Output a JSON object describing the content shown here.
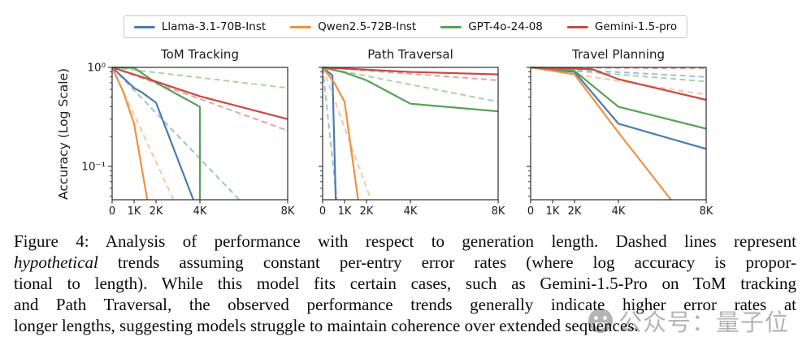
{
  "figure": {
    "ylabel": "Accuracy (Log Scale)",
    "legend": [
      {
        "label": "Llama-3.1-70B-Inst",
        "color": "#4a7bb3"
      },
      {
        "label": "Qwen2.5-72B-Inst",
        "color": "#f0913e"
      },
      {
        "label": "GPT-4o-24-08",
        "color": "#57a257"
      },
      {
        "label": "Gemini-1.5-pro",
        "color": "#cb4942"
      }
    ]
  },
  "chart_data": [
    {
      "type": "line",
      "title": "ToM Tracking",
      "xscale": "linear",
      "yscale": "log",
      "xlim": [
        0,
        8
      ],
      "ylim": [
        0.046,
        1.0
      ],
      "grid": false,
      "x_ticks": [
        {
          "v": 0,
          "label": "0"
        },
        {
          "v": 1,
          "label": "1K"
        },
        {
          "v": 2,
          "label": "2K"
        },
        {
          "v": 4,
          "label": "4K"
        },
        {
          "v": 8,
          "label": "8K"
        }
      ],
      "y_ticks": [
        {
          "v": 1,
          "label": "10⁰"
        },
        {
          "v": 0.1,
          "label": "10⁻¹"
        }
      ],
      "series": [
        {
          "name": "Llama-3.1-70B-Inst",
          "kind": "hypothetical",
          "style": "dashed",
          "color": "#4a7bb3",
          "points": [
            [
              0,
              1.0
            ],
            [
              5.8,
              0.046
            ]
          ]
        },
        {
          "name": "Qwen2.5-72B-Inst",
          "kind": "hypothetical",
          "style": "dashed",
          "color": "#f0913e",
          "points": [
            [
              0,
              1.0
            ],
            [
              2.8,
              0.046
            ]
          ]
        },
        {
          "name": "GPT-4o-24-08",
          "kind": "hypothetical",
          "style": "dashed",
          "color": "#57a257",
          "points": [
            [
              0,
              1.0
            ],
            [
              8,
              0.62
            ]
          ]
        },
        {
          "name": "Gemini-1.5-pro",
          "kind": "hypothetical",
          "style": "dashed",
          "color": "#cb4942",
          "points": [
            [
              0,
              1.0
            ],
            [
              8,
              0.23
            ]
          ]
        },
        {
          "name": "Llama-3.1-70B-Inst",
          "kind": "observed",
          "style": "solid",
          "color": "#4a7bb3",
          "points": [
            [
              0,
              1.0
            ],
            [
              1,
              0.62
            ],
            [
              1.35,
              0.56
            ],
            [
              2,
              0.44
            ],
            [
              3.7,
              0.046
            ]
          ]
        },
        {
          "name": "Qwen2.5-72B-Inst",
          "kind": "observed",
          "style": "solid",
          "color": "#f0913e",
          "points": [
            [
              0,
              1.0
            ],
            [
              0.5,
              0.57
            ],
            [
              1,
              0.27
            ],
            [
              1.6,
              0.046
            ]
          ]
        },
        {
          "name": "GPT-4o-24-08",
          "kind": "observed",
          "style": "solid",
          "color": "#57a257",
          "points": [
            [
              0,
              1.0
            ],
            [
              1,
              0.99
            ],
            [
              2,
              0.7
            ],
            [
              4,
              0.4
            ],
            [
              4,
              0.046
            ]
          ]
        },
        {
          "name": "Gemini-1.5-pro",
          "kind": "observed",
          "style": "solid",
          "color": "#cb4942",
          "points": [
            [
              0,
              1.0
            ],
            [
              2,
              0.72
            ],
            [
              4,
              0.51
            ],
            [
              8,
              0.3
            ]
          ]
        }
      ]
    },
    {
      "type": "line",
      "title": "Path Traversal",
      "xscale": "linear",
      "yscale": "log",
      "xlim": [
        0,
        8
      ],
      "ylim": [
        0.046,
        1.0
      ],
      "grid": false,
      "x_ticks": [
        {
          "v": 0,
          "label": "0"
        },
        {
          "v": 1,
          "label": "1K"
        },
        {
          "v": 2,
          "label": "2K"
        },
        {
          "v": 4,
          "label": "4K"
        },
        {
          "v": 8,
          "label": "8K"
        }
      ],
      "y_ticks": [
        {
          "v": 1,
          "label": "10⁰"
        },
        {
          "v": 0.1,
          "label": "10⁻¹"
        }
      ],
      "series": [
        {
          "name": "Llama-3.1-70B-Inst",
          "kind": "hypothetical",
          "style": "dashed",
          "color": "#4a7bb3",
          "points": [
            [
              0,
              1.0
            ],
            [
              0.65,
              0.046
            ]
          ]
        },
        {
          "name": "Qwen2.5-72B-Inst",
          "kind": "hypothetical",
          "style": "dashed",
          "color": "#f0913e",
          "points": [
            [
              0,
              1.0
            ],
            [
              2.2,
              0.046
            ]
          ]
        },
        {
          "name": "GPT-4o-24-08",
          "kind": "hypothetical",
          "style": "dashed",
          "color": "#57a257",
          "points": [
            [
              0,
              1.0
            ],
            [
              8,
              0.45
            ]
          ]
        },
        {
          "name": "Gemini-1.5-pro",
          "kind": "hypothetical",
          "style": "dashed",
          "color": "#cb4942",
          "points": [
            [
              0,
              1.0
            ],
            [
              8,
              0.74
            ]
          ]
        },
        {
          "name": "Llama-3.1-70B-Inst",
          "kind": "observed",
          "style": "solid",
          "color": "#4a7bb3",
          "points": [
            [
              0,
              1.0
            ],
            [
              0.45,
              0.83
            ],
            [
              0.6,
              0.046
            ]
          ]
        },
        {
          "name": "Qwen2.5-72B-Inst",
          "kind": "observed",
          "style": "solid",
          "color": "#f0913e",
          "points": [
            [
              0,
              1.0
            ],
            [
              0.5,
              0.72
            ],
            [
              1,
              0.45
            ],
            [
              1.62,
              0.046
            ]
          ]
        },
        {
          "name": "GPT-4o-24-08",
          "kind": "observed",
          "style": "solid",
          "color": "#57a257",
          "points": [
            [
              0,
              1.0
            ],
            [
              1,
              0.89
            ],
            [
              2,
              0.74
            ],
            [
              4,
              0.43
            ],
            [
              8,
              0.36
            ]
          ]
        },
        {
          "name": "Gemini-1.5-pro",
          "kind": "observed",
          "style": "solid",
          "color": "#cb4942",
          "points": [
            [
              0,
              1.0
            ],
            [
              4,
              0.9
            ],
            [
              8,
              0.85
            ]
          ]
        }
      ]
    },
    {
      "type": "line",
      "title": "Travel Planning",
      "xscale": "linear",
      "yscale": "log",
      "xlim": [
        0,
        8
      ],
      "ylim": [
        0.046,
        1.0
      ],
      "grid": false,
      "x_ticks": [
        {
          "v": 0,
          "label": "0"
        },
        {
          "v": 1,
          "label": "1K"
        },
        {
          "v": 2,
          "label": "2K"
        },
        {
          "v": 4,
          "label": "4K"
        },
        {
          "v": 8,
          "label": "8K"
        }
      ],
      "y_ticks": [
        {
          "v": 1,
          "label": "10⁰"
        },
        {
          "v": 0.1,
          "label": "10⁻¹"
        }
      ],
      "series": [
        {
          "name": "Llama-3.1-70B-Inst",
          "kind": "hypothetical",
          "style": "dashed",
          "color": "#4a7bb3",
          "points": [
            [
              0,
              1.0
            ],
            [
              8,
              0.8
            ]
          ]
        },
        {
          "name": "Qwen2.5-72B-Inst",
          "kind": "hypothetical",
          "style": "dashed",
          "color": "#f0913e",
          "points": [
            [
              0,
              1.0
            ],
            [
              8,
              0.53
            ]
          ]
        },
        {
          "name": "GPT-4o-24-08",
          "kind": "hypothetical",
          "style": "dashed",
          "color": "#57a257",
          "points": [
            [
              0,
              1.0
            ],
            [
              8,
              0.72
            ]
          ]
        },
        {
          "name": "Gemini-1.5-pro",
          "kind": "hypothetical",
          "style": "dashed",
          "color": "#cb4942",
          "points": [
            [
              0,
              1.0
            ],
            [
              8,
              0.975
            ]
          ]
        },
        {
          "name": "Llama-3.1-70B-Inst",
          "kind": "observed",
          "style": "solid",
          "color": "#4a7bb3",
          "points": [
            [
              0,
              1.0
            ],
            [
              2,
              0.9
            ],
            [
              4,
              0.27
            ],
            [
              8,
              0.15
            ]
          ]
        },
        {
          "name": "Qwen2.5-72B-Inst",
          "kind": "observed",
          "style": "solid",
          "color": "#f0913e",
          "points": [
            [
              0,
              1.0
            ],
            [
              2,
              0.85
            ],
            [
              4,
              0.22
            ],
            [
              6.4,
              0.046
            ]
          ]
        },
        {
          "name": "GPT-4o-24-08",
          "kind": "observed",
          "style": "solid",
          "color": "#57a257",
          "points": [
            [
              0,
              1.0
            ],
            [
              2,
              0.92
            ],
            [
              4,
              0.4
            ],
            [
              8,
              0.24
            ]
          ]
        },
        {
          "name": "Gemini-1.5-pro",
          "kind": "observed",
          "style": "solid",
          "color": "#cb4942",
          "points": [
            [
              0,
              1.0
            ],
            [
              2.8,
              0.96
            ],
            [
              4,
              0.76
            ],
            [
              8,
              0.47
            ]
          ]
        }
      ]
    }
  ],
  "caption": {
    "lines": [
      [
        {
          "text": "Figure 4: Analysis of performance with respect to generation length. Dashed lines represent"
        }
      ],
      [
        {
          "text": "hypothetical",
          "italic": true
        },
        {
          "text": " trends assuming constant per-entry error rates (where log accuracy is propor-"
        }
      ],
      [
        {
          "text": "tional to length). While this model fits certain cases, such as Gemini-1.5-Pro on ToM tracking"
        }
      ],
      [
        {
          "text": "and Path Traversal, the observed performance trends generally indicate higher error rates at"
        }
      ],
      [
        {
          "text": "longer lengths, suggesting models struggle to maintain coherence over extended sequences."
        }
      ]
    ]
  },
  "watermark": {
    "text": "公众号：量子位"
  }
}
